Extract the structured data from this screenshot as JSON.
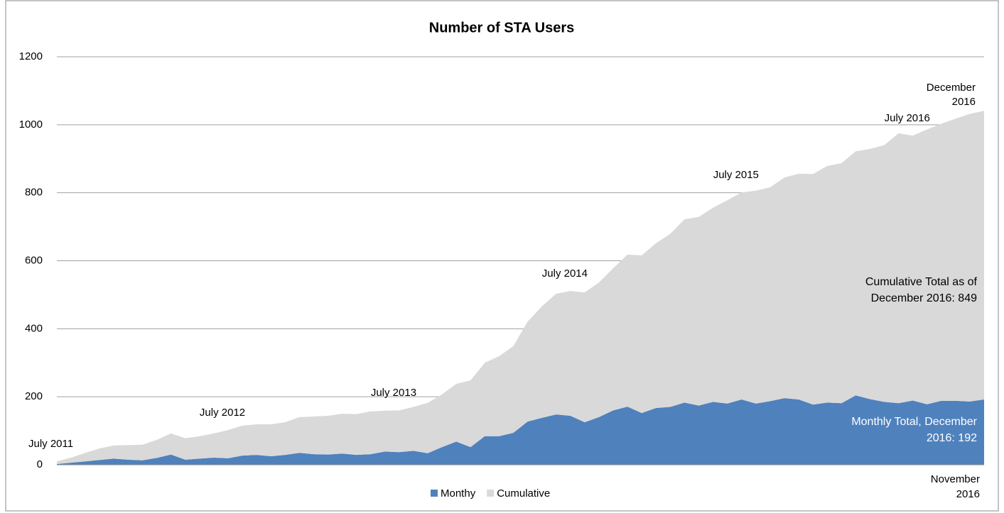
{
  "chart_data": {
    "type": "stacked_area",
    "title": "Number of STA Users",
    "categories": [
      "July 2011",
      null,
      null,
      null,
      null,
      null,
      null,
      null,
      null,
      null,
      null,
      null,
      "July 2012",
      null,
      null,
      null,
      null,
      null,
      null,
      null,
      null,
      null,
      null,
      null,
      "July 2013",
      null,
      null,
      null,
      null,
      null,
      null,
      null,
      null,
      null,
      null,
      null,
      "July 2014",
      null,
      null,
      null,
      null,
      null,
      null,
      null,
      null,
      null,
      null,
      null,
      "July 2015",
      null,
      null,
      null,
      null,
      null,
      null,
      null,
      null,
      null,
      null,
      null,
      "July 2016",
      null,
      null,
      null,
      null,
      "December 2016"
    ],
    "series": [
      {
        "name": "Monthy",
        "color": "#4f81bd",
        "values": [
          2,
          6,
          10,
          14,
          18,
          15,
          13,
          20,
          30,
          15,
          18,
          21,
          19,
          27,
          29,
          25,
          29,
          35,
          31,
          30,
          33,
          29,
          31,
          39,
          37,
          41,
          34,
          52,
          68,
          52,
          84,
          84,
          94,
          127,
          138,
          148,
          144,
          125,
          140,
          160,
          171,
          152,
          167,
          170,
          183,
          174,
          185,
          180,
          192,
          180,
          187,
          196,
          192,
          177,
          183,
          181,
          204,
          193,
          185,
          181,
          189,
          178,
          188,
          188,
          186,
          192
        ]
      },
      {
        "name": "Cumulative",
        "color": "#d9d9d9",
        "values": [
          8,
          15,
          25,
          34,
          39,
          43,
          46,
          53,
          62,
          63,
          66,
          71,
          83,
          88,
          90,
          94,
          96,
          105,
          111,
          114,
          117,
          120,
          126,
          120,
          123,
          129,
          148,
          155,
          170,
          196,
          216,
          235,
          255,
          294,
          328,
          355,
          367,
          382,
          396,
          418,
          447,
          464,
          485,
          509,
          539,
          555,
          571,
          598,
          609,
          626,
          629,
          649,
          664,
          678,
          696,
          706,
          718,
          736,
          755,
          794,
          779,
          808,
          815,
          830,
          846,
          849
        ]
      }
    ],
    "ylim": [
      0,
      1200
    ],
    "yticks": [
      0,
      200,
      400,
      600,
      800,
      1000,
      1200
    ],
    "grid": true,
    "stacked": true,
    "legend": "bottom",
    "annotations": [
      "Cumulative Total as of December 2016: 849",
      "Monthly Total, December 2016: 192",
      "November 2016"
    ]
  }
}
